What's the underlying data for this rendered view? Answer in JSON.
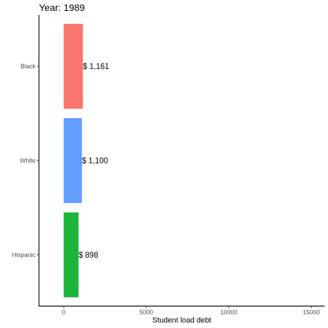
{
  "chart_data": {
    "type": "bar",
    "orientation": "horizontal",
    "title": "Year: 1989",
    "xlabel": "Student load debt",
    "ylabel": "",
    "categories": [
      "Black",
      "White",
      "Hispanic"
    ],
    "values": [
      1161,
      1100,
      898
    ],
    "value_labels": [
      "$ 1,161",
      "$ 1,100",
      "$ 898"
    ],
    "colors": [
      "#F8766D",
      "#619CFF",
      "#1DB43A"
    ],
    "xlim": [
      -1500,
      15800
    ],
    "x_ticks": [
      0,
      5000,
      10000,
      15000
    ],
    "x_tick_labels": [
      "0",
      "5000",
      "10000",
      "15000"
    ],
    "grid": false,
    "legend": "none"
  }
}
